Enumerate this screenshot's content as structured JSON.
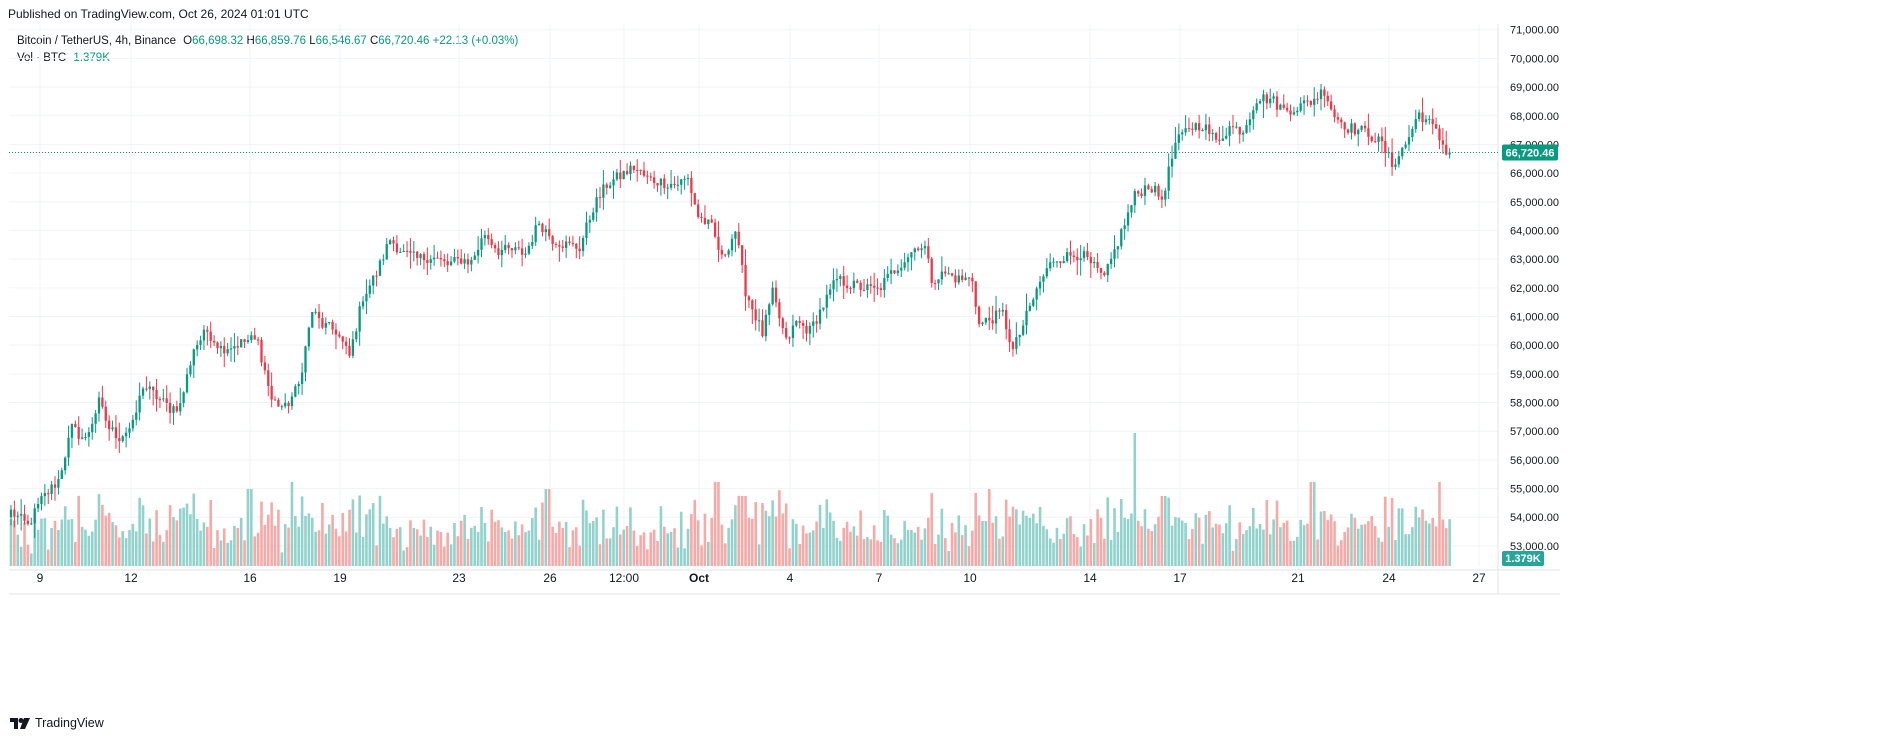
{
  "header": {
    "published": "Published on TradingView.com, Oct 26, 2024 01:01 UTC"
  },
  "legend": {
    "symbol": "Bitcoin / TetherUS, 4h, Binance",
    "o_label": "O",
    "o_value": "66,698.32",
    "h_label": "H",
    "h_value": "66,859.76",
    "l_label": "L",
    "l_value": "66,546.67",
    "c_label": "C",
    "c_value": "66,720.46",
    "change": "+22.13 (+0.03%)",
    "vol_label": "Vol · BTC",
    "vol_value": "1.379K"
  },
  "footer": {
    "brand": "TradingView"
  },
  "colors": {
    "up": "#089981",
    "down": "#f23645",
    "up_vol": "#92d2cc",
    "down_vol": "#f7a9a7",
    "grid": "#f0f3fa",
    "last_price": "#089981"
  },
  "chart_data": {
    "type": "candlestick",
    "title": "Bitcoin / TetherUS, 4h, Binance",
    "ylim": [
      52300,
      71200
    ],
    "y_ticks": [
      "71,000.00",
      "70,000.00",
      "69,000.00",
      "68,000.00",
      "67,000.00",
      "66,000.00",
      "65,000.00",
      "64,000.00",
      "63,000.00",
      "62,000.00",
      "61,000.00",
      "60,000.00",
      "59,000.00",
      "58,000.00",
      "57,000.00",
      "56,000.00",
      "55,000.00",
      "54,000.00",
      "53,000.00"
    ],
    "x_ticks": [
      "9",
      "12",
      "16",
      "19",
      "23",
      "26",
      "12:00",
      "Oct",
      "4",
      "7",
      "10",
      "14",
      "17",
      "21",
      "24",
      "27"
    ],
    "last_price": 66720.46,
    "last_price_label": "66,720.46",
    "volume_label": "1.379K",
    "anchors": [
      [
        0,
        54200
      ],
      [
        5,
        53700
      ],
      [
        9,
        54600
      ],
      [
        14,
        55300
      ],
      [
        18,
        57100
      ],
      [
        22,
        56700
      ],
      [
        26,
        58000
      ],
      [
        29,
        57100
      ],
      [
        32,
        56800
      ],
      [
        36,
        57200
      ],
      [
        39,
        58600
      ],
      [
        43,
        58200
      ],
      [
        47,
        57800
      ],
      [
        50,
        57900
      ],
      [
        54,
        59900
      ],
      [
        58,
        60500
      ],
      [
        62,
        59900
      ],
      [
        66,
        60000
      ],
      [
        71,
        60200
      ],
      [
        73,
        60100
      ],
      [
        77,
        58100
      ],
      [
        81,
        57800
      ],
      [
        85,
        58600
      ],
      [
        89,
        61200
      ],
      [
        92,
        60700
      ],
      [
        96,
        60500
      ],
      [
        100,
        59600
      ],
      [
        104,
        61700
      ],
      [
        108,
        62500
      ],
      [
        112,
        63700
      ],
      [
        116,
        63200
      ],
      [
        120,
        63000
      ],
      [
        124,
        63100
      ],
      [
        129,
        62800
      ],
      [
        133,
        63000
      ],
      [
        136,
        62900
      ],
      [
        140,
        63900
      ],
      [
        144,
        63300
      ],
      [
        148,
        63300
      ],
      [
        152,
        63200
      ],
      [
        156,
        64300
      ],
      [
        160,
        63700
      ],
      [
        164,
        63500
      ],
      [
        168,
        63400
      ],
      [
        172,
        64800
      ],
      [
        176,
        65600
      ],
      [
        180,
        65900
      ],
      [
        184,
        66200
      ],
      [
        188,
        65800
      ],
      [
        192,
        65700
      ],
      [
        196,
        65600
      ],
      [
        200,
        65800
      ],
      [
        203,
        64500
      ],
      [
        207,
        64100
      ],
      [
        210,
        63000
      ],
      [
        214,
        64000
      ],
      [
        217,
        61900
      ],
      [
        219,
        61300
      ],
      [
        222,
        60400
      ],
      [
        225,
        61800
      ],
      [
        229,
        60100
      ],
      [
        232,
        60800
      ],
      [
        236,
        60500
      ],
      [
        240,
        61400
      ],
      [
        244,
        62300
      ],
      [
        248,
        62100
      ],
      [
        252,
        62000
      ],
      [
        256,
        61900
      ],
      [
        260,
        62500
      ],
      [
        264,
        63000
      ],
      [
        268,
        63500
      ],
      [
        270,
        63400
      ],
      [
        272,
        62300
      ],
      [
        276,
        62500
      ],
      [
        280,
        62300
      ],
      [
        284,
        62300
      ],
      [
        286,
        60700
      ],
      [
        289,
        60900
      ],
      [
        293,
        61100
      ],
      [
        296,
        59800
      ],
      [
        300,
        61000
      ],
      [
        304,
        62200
      ],
      [
        308,
        63000
      ],
      [
        312,
        63100
      ],
      [
        316,
        63200
      ],
      [
        320,
        62700
      ],
      [
        323,
        62300
      ],
      [
        327,
        63600
      ],
      [
        332,
        65200
      ],
      [
        336,
        65600
      ],
      [
        340,
        65100
      ],
      [
        344,
        67000
      ],
      [
        348,
        67600
      ],
      [
        352,
        67700
      ],
      [
        356,
        67100
      ],
      [
        360,
        67600
      ],
      [
        364,
        67500
      ],
      [
        368,
        68600
      ],
      [
        372,
        68600
      ],
      [
        376,
        68200
      ],
      [
        380,
        68300
      ],
      [
        384,
        68500
      ],
      [
        388,
        68900
      ],
      [
        391,
        68000
      ],
      [
        395,
        67600
      ],
      [
        398,
        67500
      ],
      [
        401,
        67400
      ],
      [
        405,
        67000
      ],
      [
        408,
        66300
      ],
      [
        412,
        67000
      ],
      [
        416,
        68100
      ],
      [
        420,
        67600
      ],
      [
        424,
        66800
      ]
    ],
    "volume_note": "volume bars scaled to pane; spikes near Sep 16, Sep 18, Sep 27, Oct 2, Oct 9, Oct 15, Oct 21, Oct 25"
  }
}
